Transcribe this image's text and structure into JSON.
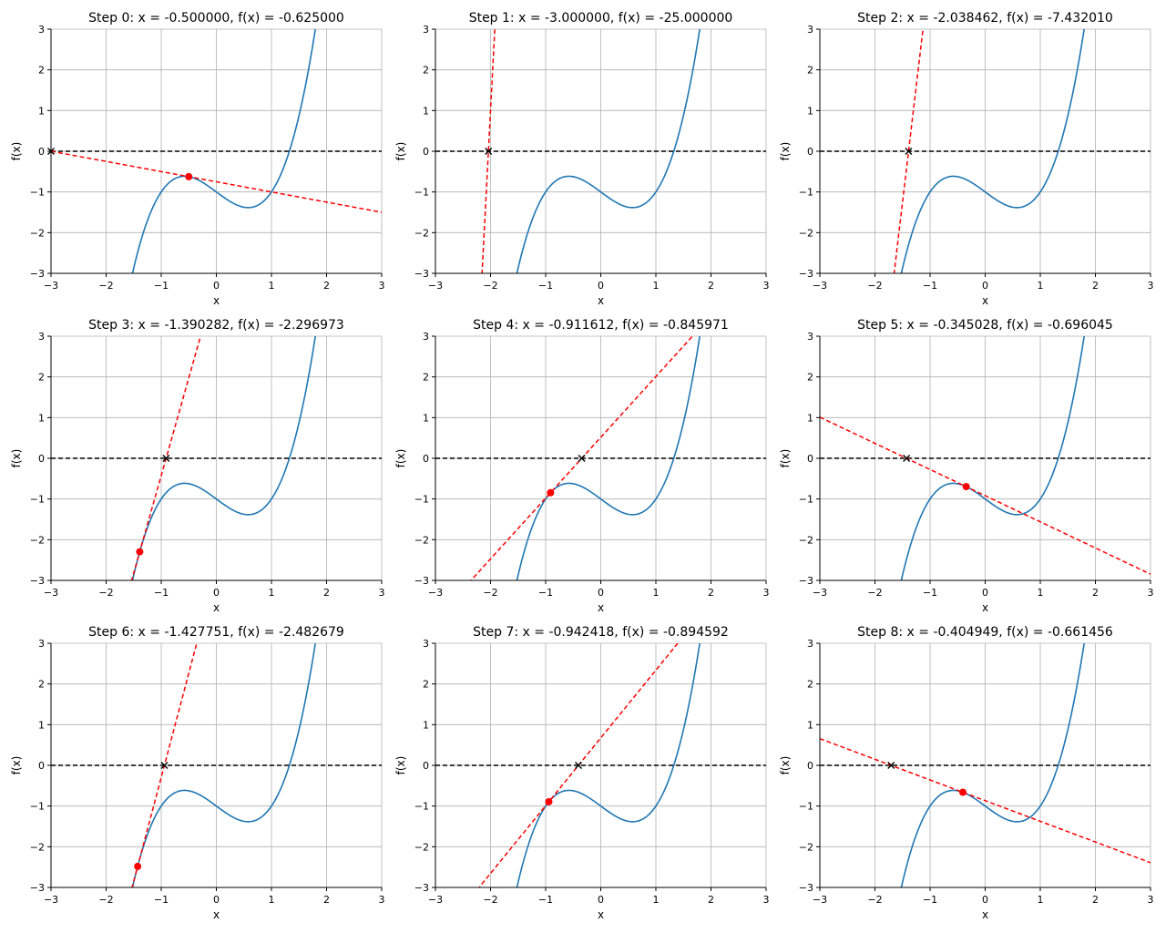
{
  "chart_data": {
    "type": "line",
    "description_function_coefficients": [
      1,
      0,
      -1,
      -1
    ],
    "xlim": [
      -3,
      3
    ],
    "ylim": [
      -3,
      3
    ],
    "xticks": [
      -3,
      -2,
      -1,
      0,
      1,
      2,
      3
    ],
    "yticks": [
      -3,
      -2,
      -1,
      0,
      1,
      2,
      3
    ],
    "xlabel": "x",
    "ylabel": "f(x)",
    "grid": true,
    "colors": {
      "curve": "#1f77b4",
      "tangent": "#ff0000",
      "zero_line": "#000000",
      "grid": "#b0b0b0"
    },
    "subplots": [
      {
        "title": "Step 0: x = -0.500000, f(x) = -0.625000",
        "x": -0.5,
        "fx": -0.625,
        "next_x": -3.0
      },
      {
        "title": "Step 1: x = -3.000000, f(x) = -25.000000",
        "x": -3.0,
        "fx": -25.0,
        "next_x": -2.038462
      },
      {
        "title": "Step 2: x = -2.038462, f(x) = -7.432010",
        "x": -2.038462,
        "fx": -7.43201,
        "next_x": -1.390282
      },
      {
        "title": "Step 3: x = -1.390282, f(x) = -2.296973",
        "x": -1.390282,
        "fx": -2.296973,
        "next_x": -0.911612
      },
      {
        "title": "Step 4: x = -0.911612, f(x) = -0.845971",
        "x": -0.911612,
        "fx": -0.845971,
        "next_x": -0.345028
      },
      {
        "title": "Step 5: x = -0.345028, f(x) = -0.696045",
        "x": -0.345028,
        "fx": -0.696045,
        "next_x": -1.427751
      },
      {
        "title": "Step 6: x = -1.427751, f(x) = -2.482679",
        "x": -1.427751,
        "fx": -2.482679,
        "next_x": -0.942418
      },
      {
        "title": "Step 7: x = -0.942418, f(x) = -0.894592",
        "x": -0.942418,
        "fx": -0.894592,
        "next_x": -0.404949
      },
      {
        "title": "Step 8: x = -0.404949, f(x) = -0.661456",
        "x": -0.404949,
        "fx": -0.661456,
        "next_x": -1.7069
      }
    ]
  }
}
